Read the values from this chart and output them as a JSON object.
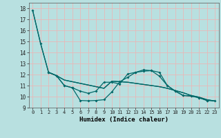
{
  "xlabel": "Humidex (Indice chaleur)",
  "xlim": [
    -0.5,
    23.5
  ],
  "ylim": [
    9.0,
    18.5
  ],
  "yticks": [
    9,
    10,
    11,
    12,
    13,
    14,
    15,
    16,
    17,
    18
  ],
  "xticks": [
    0,
    1,
    2,
    3,
    4,
    5,
    6,
    7,
    8,
    9,
    10,
    11,
    12,
    13,
    14,
    15,
    16,
    17,
    18,
    19,
    20,
    21,
    22,
    23
  ],
  "bg_color": "#b8e0e0",
  "grid_color": "#e8b8b8",
  "line_color": "#006868",
  "line1_x": [
    0,
    1,
    2,
    3,
    4,
    5,
    6,
    7,
    8,
    9,
    10,
    11,
    12,
    13,
    14,
    15,
    16,
    17,
    18,
    19,
    20,
    21,
    22
  ],
  "line1_y": [
    17.8,
    14.8,
    12.2,
    11.9,
    11.0,
    10.8,
    10.5,
    10.3,
    10.5,
    11.3,
    11.3,
    11.15,
    12.05,
    12.2,
    12.3,
    12.35,
    11.85,
    11.0,
    10.5,
    10.1,
    10.05,
    9.9,
    9.65
  ],
  "line2_x": [
    0,
    1,
    2,
    3,
    4,
    5,
    6,
    7,
    8,
    9,
    10,
    11,
    12,
    13,
    14,
    15,
    16,
    17,
    18,
    19,
    20,
    21,
    22,
    23
  ],
  "line2_y": [
    17.8,
    14.8,
    12.2,
    11.9,
    11.5,
    11.35,
    11.2,
    11.05,
    10.9,
    10.75,
    11.4,
    11.35,
    11.3,
    11.2,
    11.1,
    11.0,
    10.9,
    10.75,
    10.55,
    10.35,
    10.1,
    9.95,
    9.72,
    9.6
  ],
  "line3_x": [
    2,
    3,
    4,
    5,
    6,
    7,
    8,
    9,
    10,
    11,
    12,
    13,
    14,
    15,
    16,
    17,
    18,
    19,
    20,
    21,
    22,
    23
  ],
  "line3_y": [
    12.2,
    11.9,
    11.0,
    10.8,
    9.65,
    9.62,
    9.65,
    9.72,
    10.43,
    11.35,
    11.75,
    12.2,
    12.42,
    12.35,
    12.2,
    11.0,
    10.5,
    10.1,
    10.05,
    9.9,
    9.65,
    9.6
  ],
  "line4_x": [
    2,
    3,
    4,
    5,
    6,
    7,
    8,
    9,
    10,
    11,
    12,
    13,
    14,
    15,
    16,
    17,
    18,
    19,
    20,
    21,
    22,
    23
  ],
  "line4_y": [
    12.2,
    11.9,
    11.5,
    11.35,
    11.2,
    11.05,
    10.9,
    10.75,
    11.4,
    11.35,
    11.3,
    11.2,
    11.1,
    11.0,
    10.9,
    10.75,
    10.55,
    10.35,
    10.1,
    9.95,
    9.72,
    9.6
  ]
}
